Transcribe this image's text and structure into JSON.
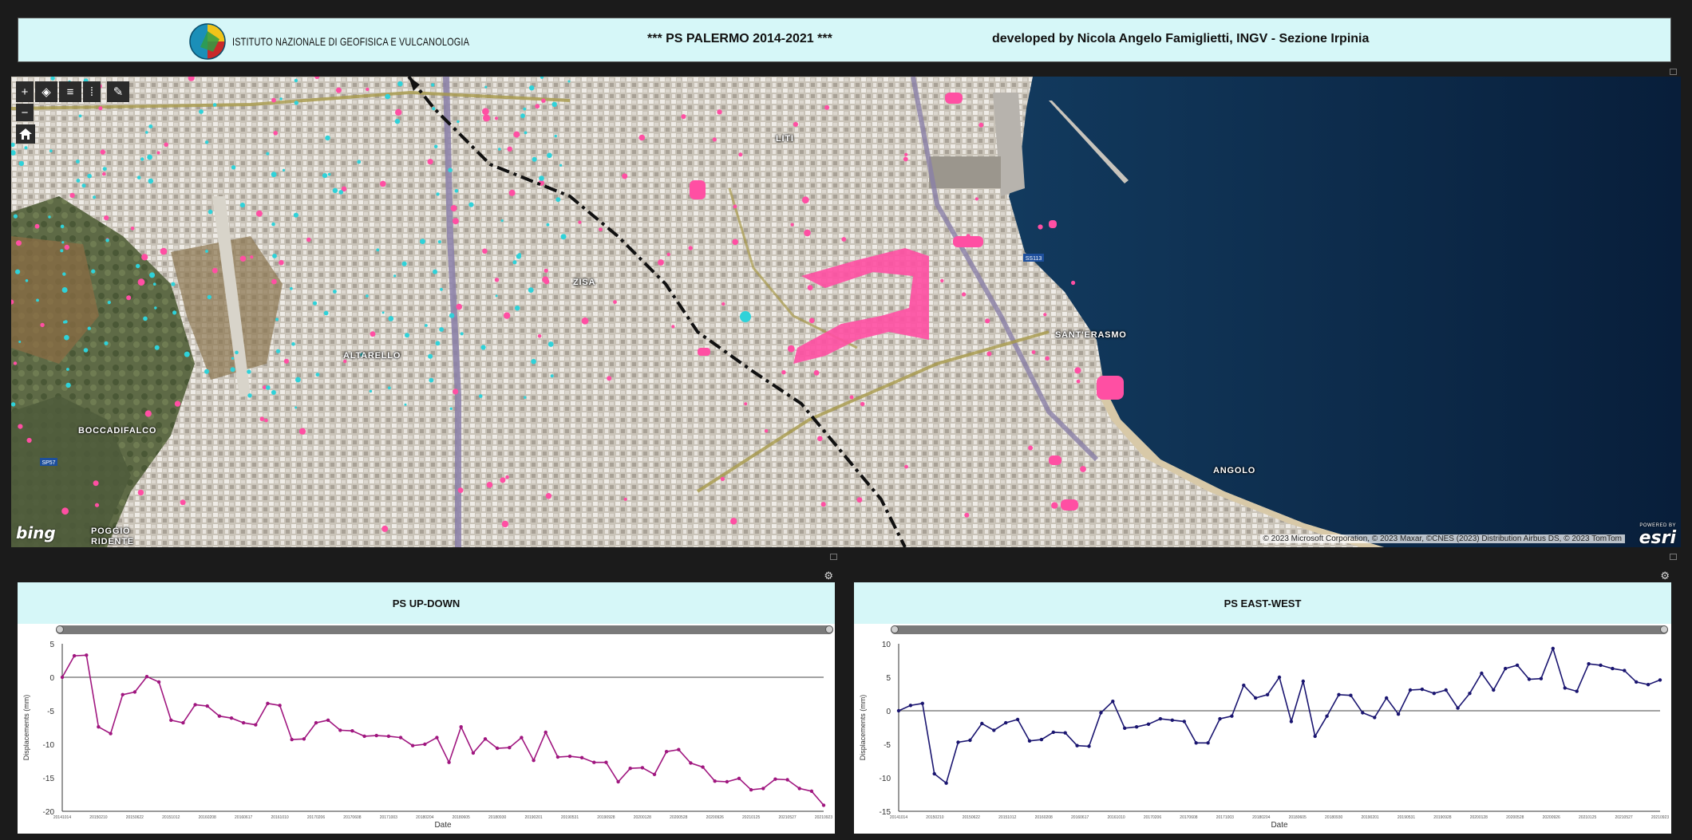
{
  "header": {
    "institute": "ISTITUTO NAZIONALE DI GEOFISICA E VULCANOLOGIA",
    "title": "*** PS PALERMO 2014-2021 ***",
    "developer": "developed by  Nicola Angelo Famiglietti,  INGV - Sezione Irpinia"
  },
  "map": {
    "toolbar": [
      {
        "icon": "zoom-in-icon",
        "glyph": "+"
      },
      {
        "icon": "layers-icon",
        "glyph": "◈"
      },
      {
        "icon": "list-icon",
        "glyph": "≡"
      },
      {
        "icon": "legend-icon",
        "glyph": "⁞"
      },
      {
        "icon": "draw-icon",
        "glyph": "✎"
      }
    ],
    "zoom_out_glyph": "−",
    "places": [
      {
        "name": "ZISA"
      },
      {
        "name": "ALTARELLO"
      },
      {
        "name": "BOCCADIFALCO"
      },
      {
        "name": "POGGIO"
      },
      {
        "name": "RIDENTE"
      },
      {
        "name": "SANT'ERASMO"
      },
      {
        "name": "ANGOLO"
      },
      {
        "name": "LITI"
      }
    ],
    "road_shields": [
      "SS113",
      "SP57"
    ],
    "attribution": "© 2023 Microsoft Corporation, © 2023 Maxar, ©CNES (2023) Distribution Airbus DS, © 2023 TomTom",
    "basemap_logo": "bing",
    "powered_by": "POWERED BY",
    "esri_logo": "esri",
    "colors": {
      "sea": "#0b2648",
      "ps_positive": "#ff4fa3",
      "ps_negative": "#2fd2d9",
      "track": "#111111"
    }
  },
  "charts": {
    "updown": {
      "title": "PS UP-DOWN",
      "xlabel": "Date",
      "ylabel": "Displacements (mm)"
    },
    "eastwest": {
      "title": "PS EAST-WEST",
      "xlabel": "Date",
      "ylabel": "Displacements (mm)"
    }
  },
  "chart_data": [
    {
      "type": "line",
      "title": "PS UP-DOWN",
      "xlabel": "Date",
      "ylabel": "Displacements (mm)",
      "ylim": [
        -20,
        5
      ],
      "yticks": [
        5,
        0,
        -5,
        -10,
        -15,
        -20
      ],
      "color": "#a0167f",
      "x_tick_labels": [
        "20141014",
        "20150210",
        "20150622",
        "20151012",
        "20160208",
        "20160617",
        "20161010",
        "20170206",
        "20170608",
        "20171003",
        "20180204",
        "20180605",
        "20180930",
        "20190201",
        "20190531",
        "20190928",
        "20200128",
        "20200528",
        "20200926",
        "20210125",
        "20210527",
        "20210923"
      ],
      "values": [
        0,
        3.2,
        3.3,
        -7.4,
        -8.4,
        -2.6,
        -2.2,
        0.1,
        -0.7,
        -6.4,
        -6.8,
        -4.1,
        -4.3,
        -5.8,
        -6.1,
        -6.8,
        -7.1,
        -3.9,
        -4.2,
        -9.3,
        -9.2,
        -6.8,
        -6.4,
        -7.9,
        -8,
        -8.8,
        -8.7,
        -8.8,
        -9,
        -10.2,
        -10,
        -9,
        -12.7,
        -7.4,
        -11.3,
        -9.2,
        -10.6,
        -10.5,
        -9,
        -12.4,
        -8.2,
        -11.9,
        -11.8,
        -12,
        -12.7,
        -12.7,
        -15.6,
        -13.6,
        -13.5,
        -14.5,
        -11.1,
        -10.8,
        -12.8,
        -13.4,
        -15.5,
        -15.6,
        -15.1,
        -16.8,
        -16.6,
        -15.2,
        -15.3,
        -16.6,
        -17,
        -19.1
      ]
    },
    {
      "type": "line",
      "title": "PS EAST-WEST",
      "xlabel": "Date",
      "ylabel": "Displacements (mm)",
      "ylim": [
        -15,
        10
      ],
      "yticks": [
        10,
        5,
        0,
        -5,
        -10,
        -15
      ],
      "color": "#1a1570",
      "x_tick_labels": [
        "20141014",
        "20150210",
        "20150622",
        "20151012",
        "20160208",
        "20160617",
        "20161010",
        "20170206",
        "20170608",
        "20171003",
        "20180204",
        "20180605",
        "20180930",
        "20190201",
        "20190531",
        "20190928",
        "20200128",
        "20200528",
        "20200926",
        "20210125",
        "20210527",
        "20210923"
      ],
      "values": [
        0,
        0.8,
        1.1,
        -9.4,
        -10.8,
        -4.7,
        -4.4,
        -1.9,
        -2.9,
        -1.8,
        -1.3,
        -4.5,
        -4.3,
        -3.2,
        -3.3,
        -5.2,
        -5.3,
        -0.3,
        1.4,
        -2.6,
        -2.4,
        -2,
        -1.2,
        -1.4,
        -1.6,
        -4.8,
        -4.8,
        -1.2,
        -0.8,
        3.8,
        1.9,
        2.4,
        5,
        -1.6,
        4.4,
        -3.8,
        -0.8,
        2.4,
        2.3,
        -0.3,
        -1,
        1.9,
        -0.5,
        3.1,
        3.2,
        2.6,
        3.1,
        0.4,
        2.6,
        5.6,
        3.1,
        6.3,
        6.8,
        4.7,
        4.8,
        9.3,
        3.4,
        2.9,
        7,
        6.8,
        6.3,
        6,
        4.3,
        3.9,
        4.6
      ]
    }
  ]
}
